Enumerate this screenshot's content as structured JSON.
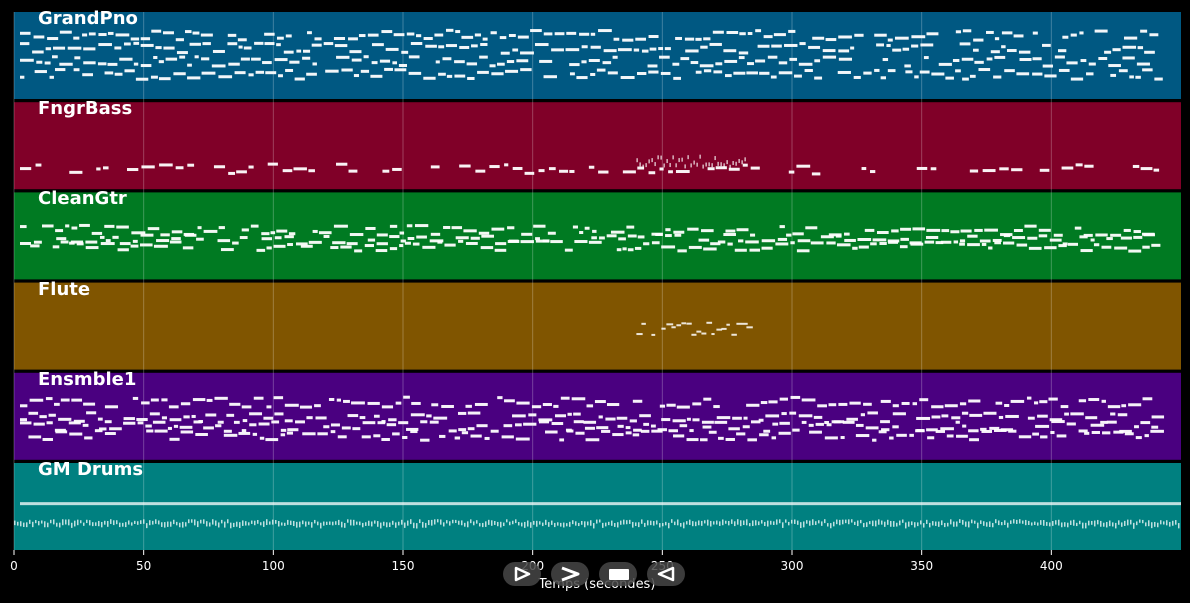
{
  "chart_data": {
    "type": "piano-roll",
    "xlabel": "Temps (secondes)",
    "xlim": [
      0,
      450
    ],
    "x_ticks": [
      0,
      50,
      100,
      150,
      200,
      250,
      300,
      350,
      400
    ],
    "x_tick_labels": [
      "0",
      "50",
      "100",
      "150",
      "200",
      "250",
      "300",
      "350",
      "400"
    ],
    "grid": true,
    "note_end": 440,
    "tracks": [
      {
        "name": "GrandPno",
        "color": "#005882",
        "density": "dense",
        "note_bands": [
          0.25,
          0.4,
          0.55,
          0.7
        ]
      },
      {
        "name": "FngrBass",
        "color": "#800028",
        "density": "sparse",
        "note_bands": [
          0.75
        ],
        "solo_span": [
          240,
          282
        ]
      },
      {
        "name": "CleanGtr",
        "color": "#007a22",
        "density": "dense",
        "note_bands": [
          0.42,
          0.52,
          0.6
        ]
      },
      {
        "name": "Flute",
        "color": "#805500",
        "density": "phrase",
        "note_bands": [
          0.55
        ],
        "phrase_span": [
          240,
          283
        ]
      },
      {
        "name": "Ensmble1",
        "color": "#4a0080",
        "density": "layered",
        "note_bands": [
          0.32,
          0.5,
          0.6,
          0.7
        ]
      },
      {
        "name": "GM Drums",
        "color": "#008080",
        "density": "drums",
        "note_bands": [
          0.45,
          0.68
        ]
      }
    ]
  },
  "controls": [
    {
      "name": "play-button",
      "icon": "play-icon"
    },
    {
      "name": "fast-forward-button",
      "icon": "fast-forward-icon"
    },
    {
      "name": "stop-button",
      "icon": "stop-icon"
    },
    {
      "name": "rewind-button",
      "icon": "rewind-icon"
    }
  ]
}
